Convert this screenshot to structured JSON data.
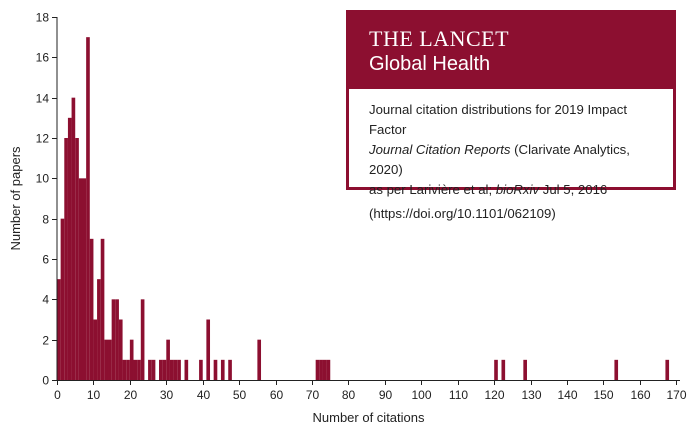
{
  "chart_data": {
    "type": "bar",
    "xlabel": "Number of citations",
    "ylabel": "Number of papers",
    "xlim": [
      0,
      171
    ],
    "ylim": [
      0,
      18
    ],
    "xticks": [
      0,
      10,
      20,
      30,
      40,
      50,
      60,
      70,
      80,
      90,
      100,
      110,
      120,
      130,
      140,
      150,
      160,
      170
    ],
    "yticks": [
      0,
      2,
      4,
      6,
      8,
      10,
      12,
      14,
      16,
      18
    ],
    "bin_width": 1,
    "bins": [
      {
        "citations": 1,
        "papers": 5
      },
      {
        "citations": 2,
        "papers": 8
      },
      {
        "citations": 3,
        "papers": 12
      },
      {
        "citations": 4,
        "papers": 13
      },
      {
        "citations": 5,
        "papers": 14
      },
      {
        "citations": 6,
        "papers": 12
      },
      {
        "citations": 7,
        "papers": 10
      },
      {
        "citations": 8,
        "papers": 10
      },
      {
        "citations": 9,
        "papers": 17
      },
      {
        "citations": 10,
        "papers": 7
      },
      {
        "citations": 11,
        "papers": 3
      },
      {
        "citations": 12,
        "papers": 5
      },
      {
        "citations": 13,
        "papers": 7
      },
      {
        "citations": 14,
        "papers": 2
      },
      {
        "citations": 15,
        "papers": 2
      },
      {
        "citations": 16,
        "papers": 4
      },
      {
        "citations": 17,
        "papers": 4
      },
      {
        "citations": 18,
        "papers": 3
      },
      {
        "citations": 19,
        "papers": 1
      },
      {
        "citations": 20,
        "papers": 1
      },
      {
        "citations": 21,
        "papers": 2
      },
      {
        "citations": 22,
        "papers": 1
      },
      {
        "citations": 23,
        "papers": 1
      },
      {
        "citations": 24,
        "papers": 4
      },
      {
        "citations": 26,
        "papers": 1
      },
      {
        "citations": 27,
        "papers": 1
      },
      {
        "citations": 29,
        "papers": 1
      },
      {
        "citations": 30,
        "papers": 1
      },
      {
        "citations": 31,
        "papers": 2
      },
      {
        "citations": 32,
        "papers": 1
      },
      {
        "citations": 33,
        "papers": 1
      },
      {
        "citations": 34,
        "papers": 1
      },
      {
        "citations": 36,
        "papers": 1
      },
      {
        "citations": 40,
        "papers": 1
      },
      {
        "citations": 42,
        "papers": 3
      },
      {
        "citations": 44,
        "papers": 1
      },
      {
        "citations": 46,
        "papers": 1
      },
      {
        "citations": 48,
        "papers": 1
      },
      {
        "citations": 56,
        "papers": 2
      },
      {
        "citations": 72,
        "papers": 1
      },
      {
        "citations": 73,
        "papers": 1
      },
      {
        "citations": 74,
        "papers": 1
      },
      {
        "citations": 75,
        "papers": 1
      },
      {
        "citations": 121,
        "papers": 1
      },
      {
        "citations": 123,
        "papers": 1
      },
      {
        "citations": 129,
        "papers": 1
      },
      {
        "citations": 154,
        "papers": 1
      },
      {
        "citations": 168,
        "papers": 1
      }
    ],
    "color": "#8c0f30"
  },
  "info_box": {
    "journal_title": "THE LANCET",
    "journal_subtitle": "Global Health",
    "caption_line1": "Journal citation distributions for 2019 Impact Factor",
    "caption_italic1": "Journal Citation Reports",
    "caption_line2_rest": " (Clarivate Analytics, 2020)",
    "caption_line3_pre": "as per Larivière et al; ",
    "caption_italic2": "bioRxiv",
    "caption_line3_post": " Jul 5, 2016",
    "doi": "(https://doi.org/10.1101/062109)"
  }
}
